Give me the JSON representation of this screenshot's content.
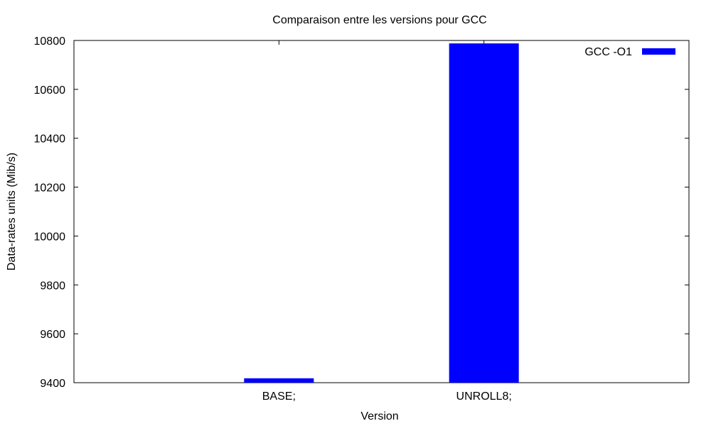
{
  "chart_data": {
    "type": "bar",
    "title": "Comparaison entre les versions pour GCC",
    "xlabel": "Version",
    "ylabel": "Data-rates units (Mib/s)",
    "categories": [
      "BASE;",
      "UNROLL8;"
    ],
    "series": [
      {
        "name": "GCC -O1",
        "values": [
          9418,
          10788
        ],
        "color": "#0000ff"
      }
    ],
    "ylim": [
      9400,
      10800
    ],
    "yticks": [
      9400,
      9600,
      9800,
      10000,
      10200,
      10400,
      10600,
      10800
    ],
    "legend_position": "top-right",
    "grid": false
  }
}
